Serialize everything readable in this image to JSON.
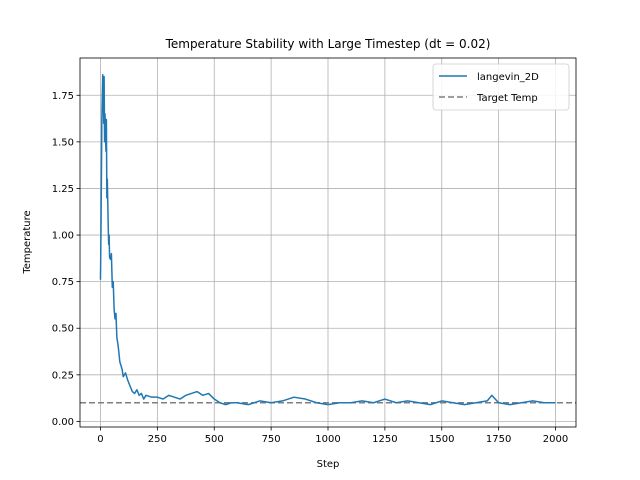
{
  "chart_data": {
    "type": "line",
    "title": "Temperature Stability with Large Timestep (dt = 0.02)",
    "xlabel": "Step",
    "ylabel": "Temperature",
    "xlim": [
      -90,
      2090
    ],
    "ylim": [
      -0.03,
      1.95
    ],
    "xticks": [
      0,
      250,
      500,
      750,
      1000,
      1250,
      1500,
      1750,
      2000
    ],
    "xtick_labels": [
      "0",
      "250",
      "500",
      "750",
      "1000",
      "1250",
      "1500",
      "1750",
      "2000"
    ],
    "yticks": [
      0.0,
      0.25,
      0.5,
      0.75,
      1.0,
      1.25,
      1.5,
      1.75
    ],
    "ytick_labels": [
      "0.00",
      "0.25",
      "0.50",
      "0.75",
      "1.00",
      "1.25",
      "1.50",
      "1.75"
    ],
    "grid": true,
    "legend_position": "upper right",
    "series": [
      {
        "name": "langevin_2D",
        "color": "#1f77b4",
        "style": "solid",
        "x": [
          0,
          2,
          4,
          6,
          8,
          10,
          12,
          14,
          16,
          18,
          20,
          22,
          24,
          26,
          28,
          30,
          32,
          34,
          36,
          38,
          40,
          44,
          48,
          52,
          56,
          60,
          64,
          68,
          72,
          76,
          80,
          85,
          90,
          95,
          100,
          110,
          120,
          130,
          140,
          150,
          160,
          170,
          180,
          190,
          200,
          225,
          250,
          275,
          300,
          325,
          350,
          375,
          400,
          425,
          450,
          475,
          500,
          525,
          550,
          575,
          600,
          650,
          700,
          750,
          800,
          850,
          900,
          950,
          1000,
          1050,
          1100,
          1150,
          1200,
          1250,
          1300,
          1350,
          1400,
          1450,
          1500,
          1550,
          1600,
          1650,
          1700,
          1720,
          1750,
          1800,
          1850,
          1900,
          1950,
          2000
        ],
        "y": [
          0.76,
          1.0,
          1.3,
          1.62,
          1.75,
          1.86,
          1.8,
          1.6,
          1.85,
          1.5,
          1.65,
          1.55,
          1.45,
          1.62,
          1.2,
          1.3,
          1.18,
          1.05,
          0.95,
          1.0,
          0.88,
          0.87,
          0.9,
          0.72,
          0.75,
          0.6,
          0.55,
          0.58,
          0.45,
          0.42,
          0.38,
          0.32,
          0.3,
          0.28,
          0.24,
          0.26,
          0.22,
          0.19,
          0.16,
          0.15,
          0.17,
          0.14,
          0.15,
          0.12,
          0.14,
          0.13,
          0.13,
          0.12,
          0.14,
          0.13,
          0.12,
          0.14,
          0.15,
          0.16,
          0.14,
          0.15,
          0.12,
          0.1,
          0.09,
          0.1,
          0.1,
          0.09,
          0.11,
          0.1,
          0.11,
          0.13,
          0.12,
          0.1,
          0.09,
          0.1,
          0.1,
          0.11,
          0.1,
          0.12,
          0.1,
          0.11,
          0.1,
          0.09,
          0.11,
          0.1,
          0.09,
          0.1,
          0.11,
          0.14,
          0.1,
          0.09,
          0.1,
          0.11,
          0.1,
          0.1
        ]
      },
      {
        "name": "Target Temp",
        "color": "#7f7f7f",
        "style": "dashed",
        "y_constant": 0.1
      }
    ]
  }
}
